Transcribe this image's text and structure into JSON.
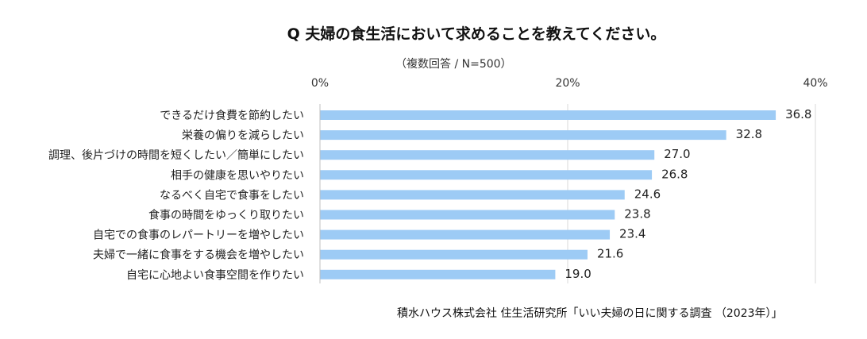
{
  "chart_data": {
    "type": "bar",
    "orientation": "horizontal",
    "title": "Q 夫婦の食生活において求めることを教えてください。",
    "subtitle": "（複数回答 / N=500）",
    "source": "積水ハウス株式会社 住生活研究所「いい夫婦の日に関する調査 （2023年）」",
    "x_ticks": [
      "0%",
      "20%",
      "40%"
    ],
    "xlim": [
      0,
      40
    ],
    "grid": true,
    "bar_color": "#9DCBF5",
    "categories": [
      "できるだけ食費を節約したい",
      "栄養の偏りを減らしたい",
      "調理、後片づけの時間を短くしたい／簡単にしたい",
      "相手の健康を思いやりたい",
      "なるべく自宅で食事をしたい",
      "食事の時間をゆっくり取りたい",
      "自宅での食事のレパートリーを増やしたい",
      "夫婦で一緒に食事をする機会を増やしたい",
      "自宅に心地よい食事空間を作りたい"
    ],
    "values": [
      36.8,
      32.8,
      27.0,
      26.8,
      24.6,
      23.8,
      23.4,
      21.6,
      19.0
    ],
    "value_labels": [
      "36.8",
      "32.8",
      "27.0",
      "26.8",
      "24.6",
      "23.8",
      "23.4",
      "21.6",
      "19.0"
    ]
  }
}
